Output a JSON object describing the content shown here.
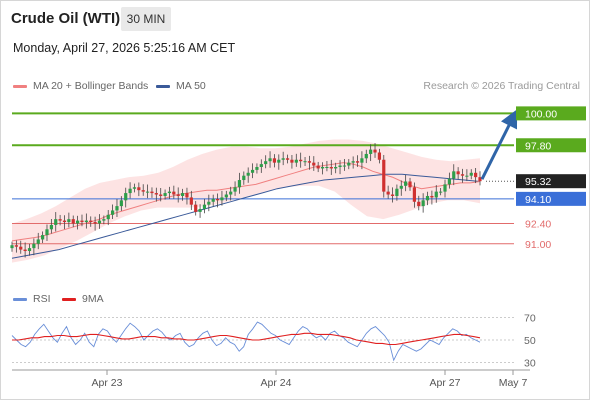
{
  "header": {
    "title": "Crude Oil (WTI)",
    "timeframe": "30 MIN",
    "datetime": "Monday, April 27, 2026 5:25:16 AM CET"
  },
  "legend": {
    "ma20_label": "MA 20 + Bollinger Bands",
    "ma50_label": "MA 50",
    "rsi_label": "RSI",
    "rsi_ma_label": "9MA",
    "credit": "Research © 2026 Trading Central"
  },
  "colors": {
    "resistance": "#5aaa1e",
    "support": "#e26b6b",
    "pivot": "#3a6fd8",
    "last": "#222222",
    "arrow": "#2f65a8",
    "candle_up": "#2e9e4a",
    "candle_down": "#d03030",
    "ma20": "#f08080",
    "ma50": "#3a5a99",
    "band": "#fde0e0",
    "rsi": "#6a8fd8",
    "rsi_ma": "#e02020"
  },
  "chart_data": [
    {
      "type": "candlestick",
      "title": "Crude Oil (WTI)",
      "timeframe": "30 MIN",
      "x_ticks": [
        "Apr 23",
        "Apr 24",
        "Apr 27",
        "May 7"
      ],
      "ylim": [
        88.5,
        101.2
      ],
      "levels": [
        {
          "label": "100.00",
          "value": 100.0,
          "kind": "resistance"
        },
        {
          "label": "97.80",
          "value": 97.8,
          "kind": "resistance"
        },
        {
          "label": "95.32",
          "value": 95.32,
          "kind": "last"
        },
        {
          "label": "94.10",
          "value": 94.1,
          "kind": "pivot"
        },
        {
          "label": "92.40",
          "value": 92.4,
          "kind": "support"
        },
        {
          "label": "91.00",
          "value": 91.0,
          "kind": "support"
        }
      ],
      "close_series": [
        90.9,
        90.8,
        90.6,
        90.5,
        90.7,
        91.0,
        91.3,
        91.6,
        92.0,
        92.3,
        92.7,
        92.6,
        92.5,
        92.7,
        92.4,
        92.6,
        92.5,
        92.6,
        92.5,
        92.4,
        92.6,
        92.7,
        93.0,
        93.3,
        93.6,
        94.0,
        94.5,
        94.8,
        94.9,
        94.7,
        94.6,
        94.6,
        94.5,
        94.4,
        94.3,
        94.5,
        94.6,
        94.4,
        94.3,
        94.5,
        94.2,
        93.7,
        93.2,
        93.4,
        93.7,
        93.9,
        94.1,
        94.0,
        94.2,
        94.4,
        94.6,
        94.9,
        95.4,
        95.7,
        95.9,
        96.1,
        96.3,
        96.5,
        96.7,
        96.9,
        96.6,
        96.8,
        96.9,
        96.8,
        96.6,
        96.8,
        96.7,
        96.7,
        96.6,
        96.4,
        96.2,
        96.3,
        96.3,
        96.2,
        96.3,
        96.4,
        96.4,
        96.6,
        96.7,
        96.6,
        96.9,
        97.2,
        97.5,
        97.3,
        96.8,
        94.6,
        94.4,
        94.3,
        94.8,
        95.0,
        95.3,
        94.9,
        93.9,
        93.6,
        94.0,
        94.3,
        94.2,
        94.6,
        94.6,
        95.1,
        95.5,
        96.0,
        95.8,
        95.7,
        95.7,
        95.9,
        95.6,
        95.32
      ],
      "ma20": [
        91.2,
        91.3,
        91.4,
        91.5,
        91.7,
        91.9,
        92.1,
        92.3,
        92.5,
        92.7,
        93.0,
        93.2,
        93.4,
        93.6,
        93.8,
        94.0,
        94.2,
        94.4,
        94.5,
        94.6,
        94.7,
        94.7,
        94.8,
        94.9,
        95.0,
        95.1,
        95.3,
        95.5,
        95.7,
        95.9,
        96.1,
        96.3,
        96.4,
        96.5,
        96.6,
        96.5,
        96.3,
        96.0,
        95.8,
        95.6,
        95.3,
        95.0,
        94.8,
        94.9,
        95.0,
        95.1,
        95.2,
        95.2,
        95.3
      ],
      "ma50": [
        90.0,
        90.2,
        90.4,
        90.6,
        90.9,
        91.2,
        91.5,
        91.8,
        92.1,
        92.4,
        92.7,
        93.0,
        93.3,
        93.6,
        93.9,
        94.2,
        94.5,
        94.8,
        95.0,
        95.2,
        95.4,
        95.5,
        95.6,
        95.7,
        95.8,
        95.8,
        95.7,
        95.6,
        95.5,
        95.4,
        95.3
      ],
      "bollinger_upper": [
        92.4,
        92.7,
        93.1,
        93.6,
        94.2,
        94.8,
        95.2,
        95.4,
        95.6,
        95.7,
        95.9,
        96.3,
        96.8,
        97.2,
        97.5,
        97.7,
        97.7,
        97.6,
        97.6,
        97.7,
        97.9,
        98.1,
        98.2,
        98.2,
        98.1,
        97.9,
        97.6,
        97.3,
        97.0,
        96.8,
        96.7,
        96.8,
        96.9
      ],
      "bollinger_lower": [
        89.7,
        89.9,
        90.2,
        90.7,
        91.2,
        91.8,
        92.4,
        92.9,
        93.3,
        93.5,
        93.5,
        93.5,
        93.6,
        93.8,
        94.1,
        94.4,
        94.7,
        94.9,
        95.0,
        95.0,
        94.6,
        93.7,
        92.9,
        92.7,
        93.0,
        93.4,
        93.8,
        94.0,
        94.0,
        93.8
      ]
    },
    {
      "type": "line",
      "title": "RSI",
      "series": [
        {
          "name": "RSI",
          "values": [
            54,
            50,
            46,
            44,
            48,
            55,
            60,
            64,
            58,
            52,
            48,
            56,
            62,
            52,
            46,
            50,
            56,
            48,
            44,
            55,
            60,
            58,
            52,
            48,
            54,
            60,
            65,
            62,
            58,
            50,
            54,
            58,
            60,
            57,
            52,
            50,
            54,
            56,
            48,
            44,
            46,
            52,
            56,
            58,
            50,
            45,
            47,
            52,
            48,
            46,
            40,
            44,
            55,
            60,
            66,
            64,
            60,
            56,
            54,
            50,
            48,
            46,
            52,
            58,
            62,
            60,
            55,
            52,
            54,
            50,
            56,
            58,
            54,
            52,
            48,
            46,
            44,
            50,
            56,
            60,
            62,
            58,
            54,
            48,
            32,
            40,
            46,
            44,
            42,
            40,
            42,
            46,
            50,
            48,
            46,
            52,
            56,
            60,
            58,
            54,
            55,
            52,
            50,
            48
          ]
        },
        {
          "name": "9MA",
          "values": [
            50,
            50,
            51,
            52,
            52,
            53,
            53,
            54,
            54,
            53,
            53,
            54,
            55,
            55,
            54,
            53,
            52,
            51,
            51,
            52,
            53,
            53,
            53,
            52,
            52,
            51,
            51,
            50,
            50,
            51,
            52,
            53,
            54,
            54,
            53,
            52,
            51,
            50,
            50,
            51,
            52,
            53,
            54,
            55,
            55,
            56,
            56,
            55,
            55,
            55,
            54,
            53,
            52,
            50,
            49,
            48,
            47,
            47,
            46,
            46,
            47,
            48,
            49,
            50,
            51,
            52,
            53,
            54,
            55,
            55,
            54,
            53,
            52
          ]
        }
      ],
      "ylim": [
        25,
        75
      ],
      "y_ticks": [
        70,
        50,
        30
      ]
    }
  ]
}
